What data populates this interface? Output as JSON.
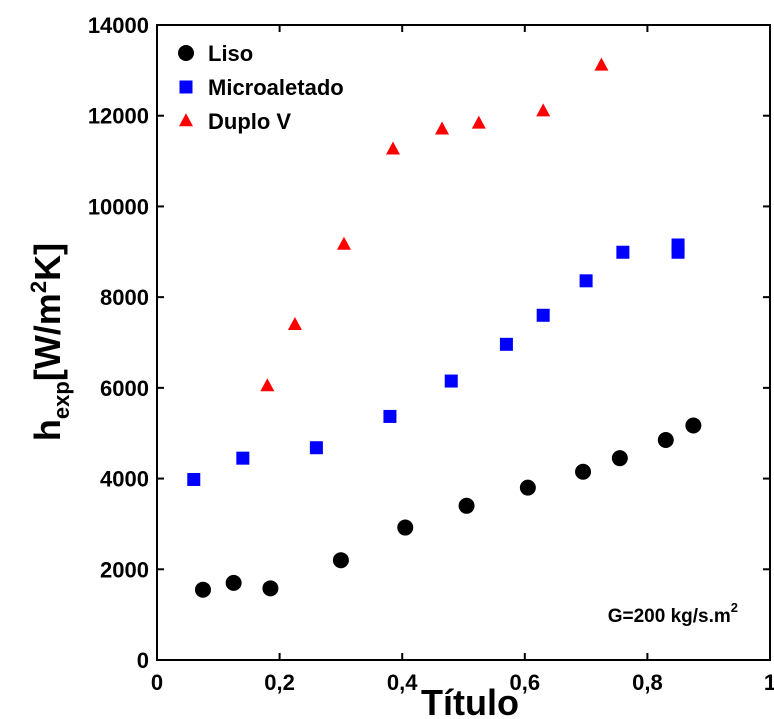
{
  "chart_data": {
    "type": "scatter",
    "xlabel": "Título",
    "ylabel": {
      "main": "h",
      "sub": "exp",
      "unit_pre": "[W/m",
      "sup": "2",
      "unit_post": "K]"
    },
    "xlim": [
      0,
      1
    ],
    "ylim": [
      0,
      14000
    ],
    "x_ticks": [
      {
        "value": 0,
        "label": "0"
      },
      {
        "value": 0.2,
        "label": "0,2"
      },
      {
        "value": 0.4,
        "label": "0,4"
      },
      {
        "value": 0.6,
        "label": "0,6"
      },
      {
        "value": 0.8,
        "label": "0,8"
      },
      {
        "value": 1,
        "label": "1"
      }
    ],
    "y_ticks": [
      {
        "value": 0,
        "label": "0"
      },
      {
        "value": 2000,
        "label": "2000"
      },
      {
        "value": 4000,
        "label": "4000"
      },
      {
        "value": 6000,
        "label": "6000"
      },
      {
        "value": 8000,
        "label": "8000"
      },
      {
        "value": 10000,
        "label": "10000"
      },
      {
        "value": 12000,
        "label": "12000"
      },
      {
        "value": 14000,
        "label": "14000"
      }
    ],
    "grid": false,
    "legend_position": "top-left",
    "annotation": {
      "text": "G=200 kg/s.m",
      "sup": "2"
    },
    "series": [
      {
        "name": "Liso",
        "marker": "circle",
        "color": "#000000",
        "points": [
          {
            "x": 0.075,
            "y": 1550
          },
          {
            "x": 0.125,
            "y": 1700
          },
          {
            "x": 0.185,
            "y": 1580
          },
          {
            "x": 0.3,
            "y": 2200
          },
          {
            "x": 0.405,
            "y": 2920
          },
          {
            "x": 0.505,
            "y": 3400
          },
          {
            "x": 0.605,
            "y": 3800
          },
          {
            "x": 0.695,
            "y": 4150
          },
          {
            "x": 0.755,
            "y": 4450
          },
          {
            "x": 0.83,
            "y": 4850
          },
          {
            "x": 0.875,
            "y": 5170
          }
        ]
      },
      {
        "name": "Microaletado",
        "marker": "square",
        "color": "#0000ff",
        "points": [
          {
            "x": 0.06,
            "y": 3980
          },
          {
            "x": 0.14,
            "y": 4450
          },
          {
            "x": 0.26,
            "y": 4680
          },
          {
            "x": 0.38,
            "y": 5370
          },
          {
            "x": 0.48,
            "y": 6150
          },
          {
            "x": 0.57,
            "y": 6960
          },
          {
            "x": 0.63,
            "y": 7600
          },
          {
            "x": 0.7,
            "y": 8360
          },
          {
            "x": 0.76,
            "y": 8990
          },
          {
            "x": 0.85,
            "y": 9150
          },
          {
            "x": 0.85,
            "y": 8990
          }
        ]
      },
      {
        "name": "Duplo V",
        "marker": "triangle",
        "color": "#ff0000",
        "points": [
          {
            "x": 0.18,
            "y": 6040
          },
          {
            "x": 0.225,
            "y": 7390
          },
          {
            "x": 0.305,
            "y": 9160
          },
          {
            "x": 0.385,
            "y": 11260
          },
          {
            "x": 0.465,
            "y": 11700
          },
          {
            "x": 0.525,
            "y": 11830
          },
          {
            "x": 0.63,
            "y": 12100
          },
          {
            "x": 0.725,
            "y": 13110
          }
        ]
      }
    ]
  }
}
